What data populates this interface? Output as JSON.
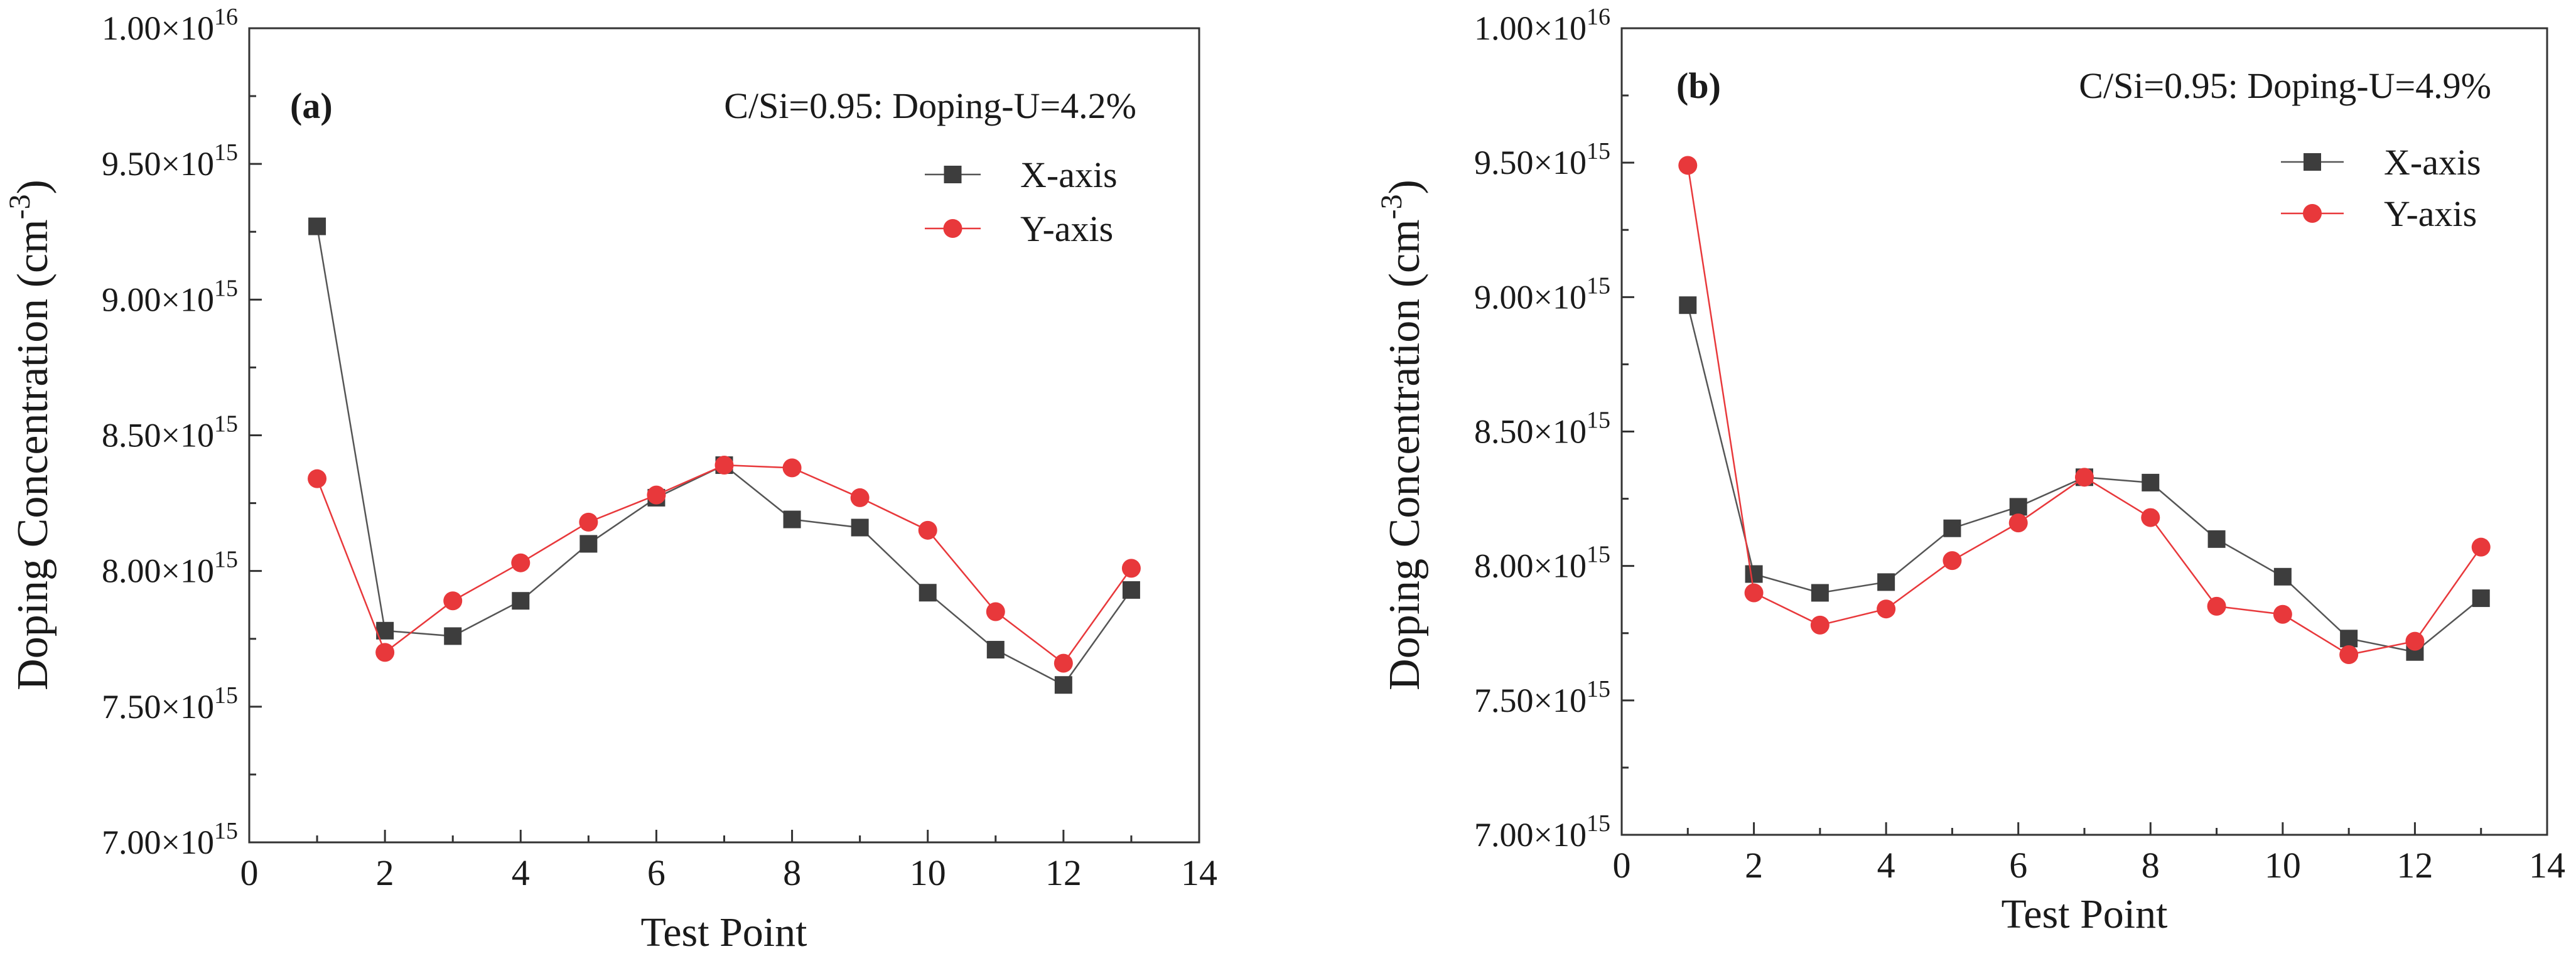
{
  "colors": {
    "x_series": "#3d3d3d",
    "y_series": "#e8383b",
    "axis": "#333333"
  },
  "chart_data": [
    {
      "type": "line",
      "panel_label": "(a)",
      "annotation": "C/Si=0.95: Doping-U=4.2%",
      "xlabel": "Test Point",
      "ylabel_main": "Doping Concentration (cm",
      "ylabel_sup": "-3",
      "ylabel_end": ")",
      "xlim": [
        0,
        14
      ],
      "ylim": [
        7000000000000000.0,
        1e+16
      ],
      "x_ticks": [
        "0",
        "2",
        "4",
        "6",
        "8",
        "10",
        "12",
        "14"
      ],
      "y_ticks": [
        {
          "mant": "7.00",
          "exp": "15"
        },
        {
          "mant": "7.50",
          "exp": "15"
        },
        {
          "mant": "8.00",
          "exp": "15"
        },
        {
          "mant": "8.50",
          "exp": "15"
        },
        {
          "mant": "9.00",
          "exp": "15"
        },
        {
          "mant": "9.50",
          "exp": "15"
        },
        {
          "mant": "1.00",
          "exp": "16"
        }
      ],
      "x": [
        1,
        2,
        3,
        4,
        5,
        6,
        7,
        8,
        9,
        10,
        11,
        12,
        13
      ],
      "series": [
        {
          "name": "X-axis",
          "marker": "square",
          "values": [
            9270000000000000.0,
            7780000000000000.0,
            7760000000000000.0,
            7890000000000000.0,
            8100000000000000.0,
            8270000000000000.0,
            8390000000000000.0,
            8190000000000000.0,
            8160000000000000.0,
            7920000000000000.0,
            7710000000000000.0,
            7580000000000000.0,
            7930000000000000.0
          ]
        },
        {
          "name": "Y-axis",
          "marker": "circle",
          "values": [
            8340000000000000.0,
            7700000000000000.0,
            7890000000000000.0,
            8030000000000000.0,
            8180000000000000.0,
            8280000000000000.0,
            8390000000000000.0,
            8380000000000000.0,
            8270000000000000.0,
            8150000000000000.0,
            7850000000000000.0,
            7660000000000000.0,
            8010000000000000.0
          ]
        }
      ]
    },
    {
      "type": "line",
      "panel_label": "(b)",
      "annotation": "C/Si=0.95: Doping-U=4.9%",
      "xlabel": "Test Point",
      "ylabel_main": "Doping Concentration (cm",
      "ylabel_sup": "-3",
      "ylabel_end": ")",
      "xlim": [
        0,
        14
      ],
      "ylim": [
        7000000000000000.0,
        1e+16
      ],
      "x_ticks": [
        "0",
        "2",
        "4",
        "6",
        "8",
        "10",
        "12",
        "14"
      ],
      "y_ticks": [
        {
          "mant": "7.00",
          "exp": "15"
        },
        {
          "mant": "7.50",
          "exp": "15"
        },
        {
          "mant": "8.00",
          "exp": "15"
        },
        {
          "mant": "8.50",
          "exp": "15"
        },
        {
          "mant": "9.00",
          "exp": "15"
        },
        {
          "mant": "9.50",
          "exp": "15"
        },
        {
          "mant": "1.00",
          "exp": "16"
        }
      ],
      "x": [
        1,
        2,
        3,
        4,
        5,
        6,
        7,
        8,
        9,
        10,
        11,
        12,
        13
      ],
      "series": [
        {
          "name": "X-axis",
          "marker": "square",
          "values": [
            8970000000000000.0,
            7970000000000000.0,
            7900000000000000.0,
            7940000000000000.0,
            8140000000000000.0,
            8220000000000000.0,
            8330000000000000.0,
            8310000000000000.0,
            8100000000000000.0,
            7960000000000000.0,
            7730000000000000.0,
            7680000000000000.0,
            7880000000000000.0
          ]
        },
        {
          "name": "Y-axis",
          "marker": "circle",
          "values": [
            9490000000000000.0,
            7900000000000000.0,
            7780000000000000.0,
            7840000000000000.0,
            8020000000000000.0,
            8160000000000000.0,
            8330000000000000.0,
            8180000000000000.0,
            7850000000000000.0,
            7820000000000000.0,
            7670000000000000.0,
            7720000000000000.0,
            8070000000000000.0
          ]
        }
      ]
    }
  ]
}
